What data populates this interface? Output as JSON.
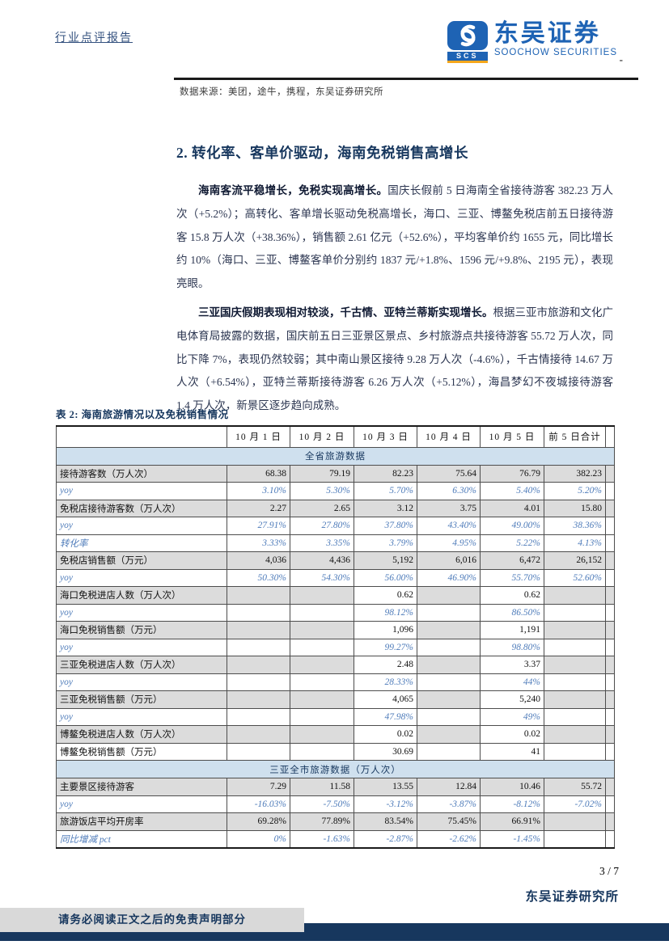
{
  "colors": {
    "accent_navy": "#17375e",
    "logo_blue": "#1e63b4",
    "logo_orange": "#f6a71c",
    "yoy_blue": "#4f7cba",
    "band_bg": "#cfe0ee",
    "row_gray": "#dcdcdc",
    "footer_bar": "#17375e",
    "disclaimer_bg": "#d9d9d9"
  },
  "header": {
    "report_type": "行业点评报告",
    "logo": {
      "cn": "东吴证券",
      "en": "SOOCHOW SECURITIES",
      "abbr": "SCS"
    },
    "dash": "-"
  },
  "source_note": "数据来源：美团，途牛，携程，东吴证券研究所",
  "section": {
    "title": "2.  转化率、客单价驱动，海南免税销售高增长",
    "paragraphs": [
      {
        "lead": "海南客流平稳增长，免税实现高增长。",
        "body": "国庆长假前 5 日海南全省接待游客 382.23 万人次（+5.2%）；高转化、客单增长驱动免税高增长，海口、三亚、博鳌免税店前五日接待游客 15.8 万人次（+38.36%），销售额 2.61 亿元（+52.6%），平均客单价约 1655 元，同比增长约 10%（海口、三亚、博鳌客单价分别约 1837 元/+1.8%、1596 元/+9.8%、2195 元），表现亮眼。"
      },
      {
        "lead": "三亚国庆假期表现相对较淡，千古情、亚特兰蒂斯实现增长。",
        "body": "根据三亚市旅游和文化广电体育局披露的数据，国庆前五日三亚景区景点、乡村旅游点共接待游客 55.72 万人次，同比下降 7%，表现仍然较弱；其中南山景区接待 9.28 万人次（-4.6%），千古情接待 14.67 万人次（+6.54%），亚特兰蒂斯接待游客 6.26 万人次（+5.12%），海昌梦幻不夜城接待游客 1.4 万人次，新景区逐步趋向成熟。"
      }
    ]
  },
  "table": {
    "caption": "表 2:  海南旅游情况以及免税销售情况",
    "columns": [
      "",
      "10 月 1 日",
      "10 月 2 日",
      "10 月 3 日",
      "10 月 4 日",
      "10 月 5 日",
      "前 5 日合计"
    ],
    "rows": [
      {
        "type": "band",
        "label": "全省旅游数据"
      },
      {
        "type": "data",
        "label": "接待游客数（万人次）",
        "values": [
          "68.38",
          "79.19",
          "82.23",
          "75.64",
          "76.79",
          "382.23"
        ]
      },
      {
        "type": "yoy",
        "label": "yoy",
        "values": [
          "3.10%",
          "5.30%",
          "5.70%",
          "6.30%",
          "5.40%",
          "5.20%"
        ]
      },
      {
        "type": "data",
        "label": "免税店接待游客数（万人次）",
        "values": [
          "2.27",
          "2.65",
          "3.12",
          "3.75",
          "4.01",
          "15.80"
        ]
      },
      {
        "type": "yoy",
        "label": "yoy",
        "values": [
          "27.91%",
          "27.80%",
          "37.80%",
          "43.40%",
          "49.00%",
          "38.36%"
        ]
      },
      {
        "type": "yoy",
        "label": "转化率",
        "values": [
          "3.33%",
          "3.35%",
          "3.79%",
          "4.95%",
          "5.22%",
          "4.13%"
        ]
      },
      {
        "type": "data",
        "label": "免税店销售额（万元）",
        "values": [
          "4,036",
          "4,436",
          "5,192",
          "6,016",
          "6,472",
          "26,152"
        ]
      },
      {
        "type": "yoy",
        "label": "yoy",
        "values": [
          "50.30%",
          "54.30%",
          "56.00%",
          "46.90%",
          "55.70%",
          "52.60%"
        ]
      },
      {
        "type": "data",
        "filled_white": true,
        "label": "海口免税进店人数（万人次）",
        "values": [
          "",
          "",
          "0.62",
          "",
          "0.62",
          ""
        ]
      },
      {
        "type": "yoy",
        "label": "yoy",
        "values": [
          "",
          "",
          "98.12%",
          "",
          "86.50%",
          ""
        ]
      },
      {
        "type": "data",
        "filled_white": true,
        "label": "海口免税销售额（万元）",
        "values": [
          "",
          "",
          "1,096",
          "",
          "1,191",
          ""
        ]
      },
      {
        "type": "yoy",
        "label": "yoy",
        "values": [
          "",
          "",
          "99.27%",
          "",
          "98.80%",
          ""
        ]
      },
      {
        "type": "data",
        "filled_white": true,
        "label": "三亚免税进店人数（万人次）",
        "values": [
          "",
          "",
          "2.48",
          "",
          "3.37",
          ""
        ]
      },
      {
        "type": "yoy",
        "label": "yoy",
        "values": [
          "",
          "",
          "28.33%",
          "",
          "44%",
          ""
        ]
      },
      {
        "type": "data",
        "filled_white": true,
        "label": "三亚免税销售额（万元）",
        "values": [
          "",
          "",
          "4,065",
          "",
          "5,240",
          ""
        ]
      },
      {
        "type": "yoy",
        "label": "yoy",
        "values": [
          "",
          "",
          "47.98%",
          "",
          "49%",
          ""
        ]
      },
      {
        "type": "data",
        "filled_white": true,
        "label": "博鳌免税进店人数（万人次）",
        "values": [
          "",
          "",
          "0.02",
          "",
          "0.02",
          ""
        ]
      },
      {
        "type": "data_white",
        "label": "博鳌免税销售额（万元）",
        "values": [
          "",
          "",
          "30.69",
          "",
          "41",
          ""
        ]
      },
      {
        "type": "band",
        "label": "三亚全市旅游数据（万人次）"
      },
      {
        "type": "data",
        "label": "主要景区接待游客",
        "values": [
          "7.29",
          "11.58",
          "13.55",
          "12.84",
          "10.46",
          "55.72"
        ]
      },
      {
        "type": "yoy",
        "label": "yoy",
        "values": [
          "-16.03%",
          "-7.50%",
          "-3.12%",
          "-3.87%",
          "-8.12%",
          "-7.02%"
        ]
      },
      {
        "type": "data",
        "label": "旅游饭店平均开房率",
        "values": [
          "69.28%",
          "77.89%",
          "83.54%",
          "75.45%",
          "66.91%",
          ""
        ]
      },
      {
        "type": "yoy",
        "label": "同比增减 pct",
        "values": [
          "0%",
          "-1.63%",
          "-2.87%",
          "-2.62%",
          "-1.45%",
          ""
        ]
      }
    ]
  },
  "footer": {
    "page_num": "3 / 7",
    "institute": "东吴证券研究所",
    "disclaimer": "请务必阅读正文之后的免责声明部分"
  }
}
